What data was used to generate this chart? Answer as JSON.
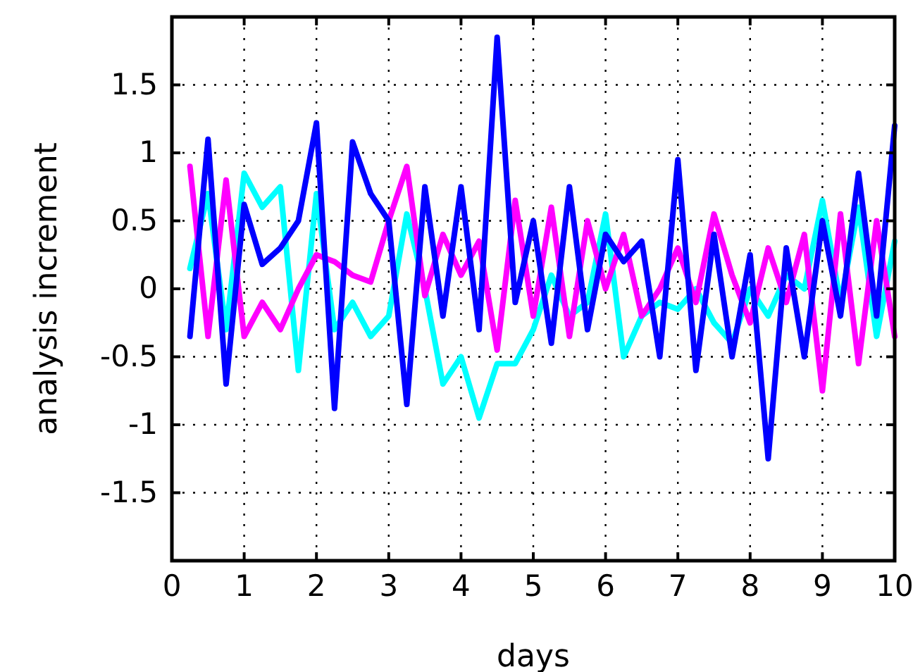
{
  "chart_data": {
    "type": "line",
    "xlabel": "days",
    "ylabel": "analysis increment",
    "xlim": [
      0,
      10
    ],
    "ylim": [
      -2,
      2
    ],
    "xticks": [
      0,
      1,
      2,
      3,
      4,
      5,
      6,
      7,
      8,
      9,
      10
    ],
    "yticks": [
      -1.5,
      -1,
      -0.5,
      0,
      0.5,
      1,
      1.5
    ],
    "grid": true,
    "line_style": "solid",
    "marker": "none",
    "x": [
      0.25,
      0.5,
      0.75,
      1,
      1.25,
      1.5,
      1.75,
      2,
      2.25,
      2.5,
      2.75,
      3,
      3.25,
      3.5,
      3.75,
      4,
      4.25,
      4.5,
      4.75,
      5,
      5.25,
      5.5,
      5.75,
      6,
      6.25,
      6.5,
      6.75,
      7,
      7.25,
      7.5,
      7.75,
      8,
      8.25,
      8.5,
      8.75,
      9,
      9.25,
      9.5,
      9.75,
      10
    ],
    "series": [
      {
        "color": "#00ffff",
        "values": [
          0.15,
          0.7,
          -0.3,
          0.85,
          0.6,
          0.75,
          -0.6,
          0.7,
          -0.3,
          -0.1,
          -0.35,
          -0.2,
          0.55,
          0.0,
          -0.7,
          -0.5,
          -0.95,
          -0.55,
          -0.55,
          -0.3,
          0.1,
          -0.2,
          -0.1,
          0.55,
          -0.5,
          -0.2,
          -0.1,
          -0.15,
          0.0,
          -0.25,
          -0.4,
          0.0,
          -0.2,
          0.1,
          0.0,
          0.65,
          -0.1,
          0.6,
          -0.35,
          0.35
        ]
      },
      {
        "color": "#ff00ff",
        "values": [
          0.9,
          -0.35,
          0.8,
          -0.35,
          -0.1,
          -0.3,
          0.0,
          0.25,
          0.2,
          0.1,
          0.05,
          0.5,
          0.9,
          -0.05,
          0.4,
          0.1,
          0.35,
          -0.45,
          0.65,
          -0.2,
          0.6,
          -0.35,
          0.5,
          0.0,
          0.4,
          -0.2,
          0.0,
          0.3,
          -0.1,
          0.55,
          0.1,
          -0.25,
          0.3,
          -0.1,
          0.4,
          -0.75,
          0.55,
          -0.55,
          0.5,
          -0.35
        ]
      },
      {
        "color": "#0000ff",
        "values": [
          -0.35,
          1.1,
          -0.7,
          0.62,
          0.18,
          0.3,
          0.5,
          1.22,
          -0.88,
          1.08,
          0.7,
          0.5,
          -0.85,
          0.75,
          -0.2,
          0.75,
          -0.3,
          1.85,
          -0.1,
          0.5,
          -0.4,
          0.75,
          -0.3,
          0.4,
          0.2,
          0.35,
          -0.5,
          0.95,
          -0.6,
          0.4,
          -0.5,
          0.25,
          -1.25,
          0.3,
          -0.5,
          0.5,
          -0.2,
          0.85,
          -0.2,
          1.2
        ]
      }
    ]
  }
}
